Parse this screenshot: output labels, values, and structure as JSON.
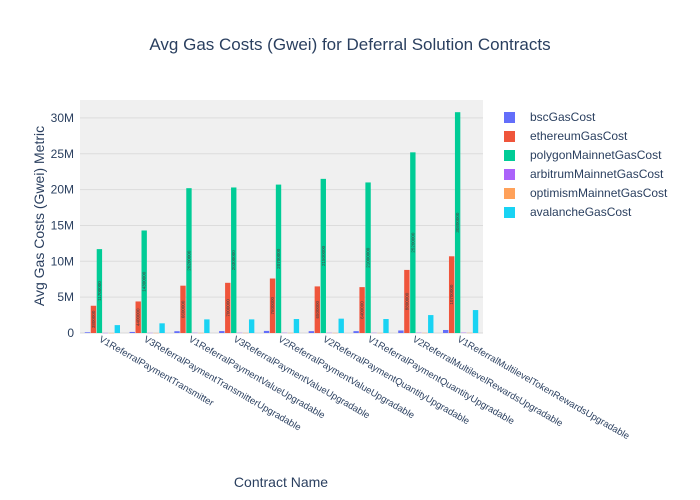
{
  "chart_data": {
    "type": "bar",
    "title": "Avg Gas Costs (Gwei) for Deferral Solution Contracts",
    "xlabel": "Contract Name",
    "ylabel": "Avg Gas Costs (Gwei) Metric",
    "ylim": [
      0,
      32500000
    ],
    "yticks": [
      0,
      5000000,
      10000000,
      15000000,
      20000000,
      25000000,
      30000000
    ],
    "ytick_labels": [
      "0",
      "5M",
      "10M",
      "15M",
      "20M",
      "25M",
      "30M"
    ],
    "grid": true,
    "legend_position": "right",
    "categories": [
      "V1ReferralPaymentTransmitter",
      "V3ReferralPaymentTransmitterUpgradable",
      "V1ReferralPaymentValueUpgradable",
      "V3ReferralPaymentValueUpgradable",
      "V2ReferralPaymentValueUpgradable",
      "V2ReferralPaymentQuantityUpgradable",
      "V1ReferralPaymentQuantityUpgradable",
      "V2ReferralMultilevelRewardsUpgradable",
      "V1ReferralMultilevelTokenRewardsUpgradable"
    ],
    "series": [
      {
        "name": "bscGasCost",
        "color": "#636efa",
        "values": [
          100000,
          150000,
          250000,
          270000,
          290000,
          260000,
          260000,
          350000,
          420000
        ]
      },
      {
        "name": "ethereumGasCost",
        "color": "#ef553b",
        "values": [
          3800000,
          4400000,
          6600000,
          7000000,
          7600000,
          6500000,
          6400000,
          8800000,
          10700000
        ]
      },
      {
        "name": "polygonMainnetGasCost",
        "color": "#00cc96",
        "values": [
          11700000,
          14300000,
          20200000,
          20300000,
          20700000,
          21500000,
          21000000,
          25200000,
          30800000
        ]
      },
      {
        "name": "arbitrumMainnetGasCost",
        "color": "#ab63fa",
        "values": [
          15000,
          20000,
          30000,
          32000,
          34000,
          30000,
          30000,
          40000,
          50000
        ]
      },
      {
        "name": "optimismMainnetGasCost",
        "color": "#ffa15a",
        "values": [
          8000,
          10000,
          15000,
          16000,
          17000,
          15000,
          15000,
          20000,
          25000
        ]
      },
      {
        "name": "avalancheGasCost",
        "color": "#19d3f3",
        "values": [
          1100000,
          1350000,
          1900000,
          1900000,
          1950000,
          2000000,
          1950000,
          2500000,
          3200000
        ]
      }
    ]
  }
}
